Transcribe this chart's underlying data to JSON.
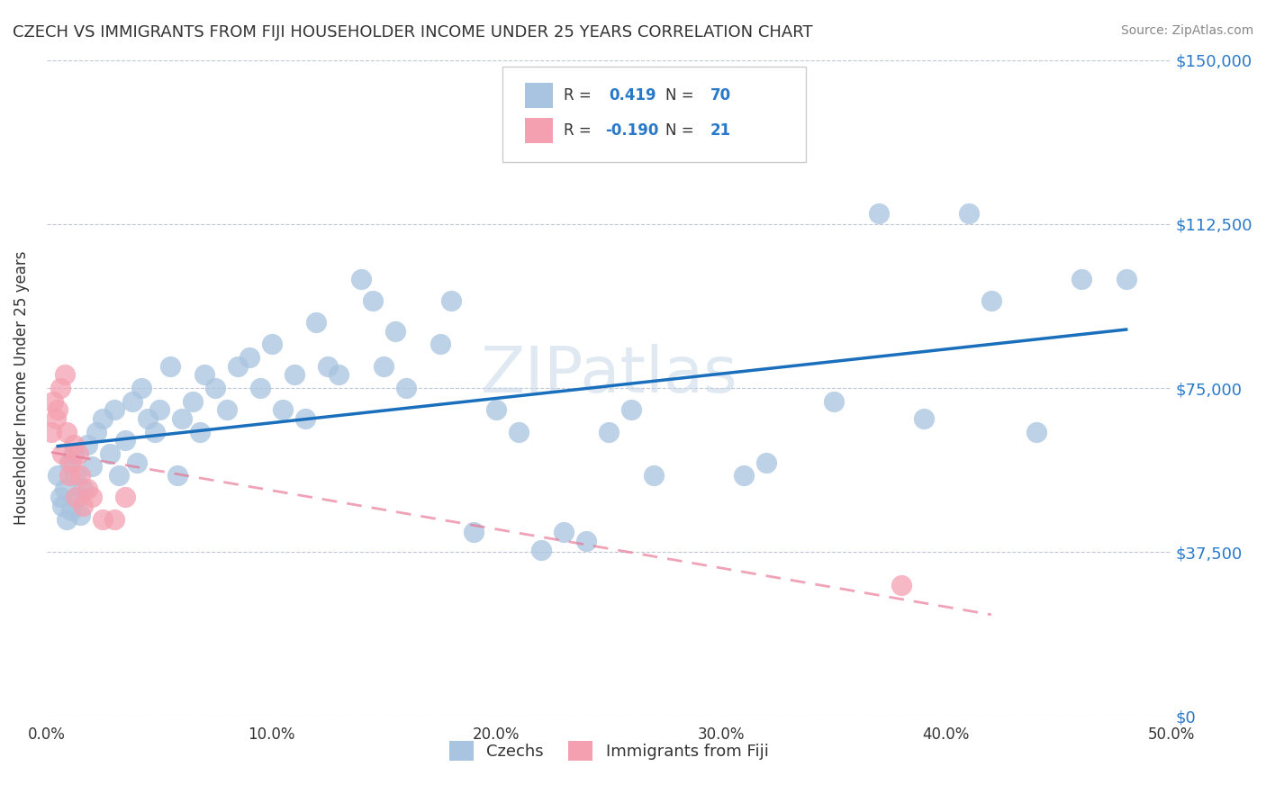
{
  "title": "CZECH VS IMMIGRANTS FROM FIJI HOUSEHOLDER INCOME UNDER 25 YEARS CORRELATION CHART",
  "source": "Source: ZipAtlas.com",
  "xlabel_ticks": [
    "0.0%",
    "10.0%",
    "20.0%",
    "30.0%",
    "40.0%",
    "50.0%"
  ],
  "xlabel_vals": [
    0.0,
    0.1,
    0.2,
    0.3,
    0.4,
    0.5
  ],
  "ylabel_ticks": [
    "$0",
    "$37,500",
    "$75,000",
    "$112,500",
    "$150,000"
  ],
  "ylabel_vals": [
    0,
    37500,
    75000,
    112500,
    150000
  ],
  "ylabel": "Householder Income Under 25 years",
  "xlim": [
    0.0,
    0.5
  ],
  "ylim": [
    0,
    150000
  ],
  "legend_r_czech": "0.419",
  "legend_n_czech": "70",
  "legend_r_fiji": "-0.190",
  "legend_n_fiji": "21",
  "blue_color": "#a8c4e0",
  "pink_color": "#f4a0b0",
  "line_blue": "#1a6fbd",
  "line_pink": "#e87090",
  "watermark": "ZIPatlas",
  "czech_x": [
    0.005,
    0.006,
    0.007,
    0.008,
    0.009,
    0.01,
    0.011,
    0.012,
    0.013,
    0.014,
    0.015,
    0.016,
    0.018,
    0.02,
    0.022,
    0.025,
    0.028,
    0.03,
    0.032,
    0.035,
    0.038,
    0.04,
    0.042,
    0.045,
    0.048,
    0.05,
    0.055,
    0.058,
    0.06,
    0.065,
    0.068,
    0.07,
    0.075,
    0.08,
    0.085,
    0.09,
    0.095,
    0.1,
    0.105,
    0.11,
    0.115,
    0.12,
    0.125,
    0.13,
    0.14,
    0.145,
    0.15,
    0.155,
    0.16,
    0.175,
    0.18,
    0.19,
    0.2,
    0.21,
    0.22,
    0.23,
    0.24,
    0.25,
    0.26,
    0.27,
    0.31,
    0.32,
    0.35,
    0.37,
    0.39,
    0.41,
    0.42,
    0.44,
    0.46,
    0.48
  ],
  "czech_y": [
    55000,
    50000,
    48000,
    52000,
    45000,
    58000,
    47000,
    60000,
    55000,
    50000,
    46000,
    52000,
    62000,
    57000,
    65000,
    68000,
    60000,
    70000,
    55000,
    63000,
    72000,
    58000,
    75000,
    68000,
    65000,
    70000,
    80000,
    55000,
    68000,
    72000,
    65000,
    78000,
    75000,
    70000,
    80000,
    82000,
    75000,
    85000,
    70000,
    78000,
    68000,
    90000,
    80000,
    78000,
    100000,
    95000,
    80000,
    88000,
    75000,
    85000,
    95000,
    42000,
    70000,
    65000,
    38000,
    42000,
    40000,
    65000,
    70000,
    55000,
    55000,
    58000,
    72000,
    115000,
    68000,
    115000,
    95000,
    65000,
    100000,
    100000
  ],
  "fiji_x": [
    0.002,
    0.003,
    0.004,
    0.005,
    0.006,
    0.007,
    0.008,
    0.009,
    0.01,
    0.011,
    0.012,
    0.013,
    0.014,
    0.015,
    0.016,
    0.018,
    0.02,
    0.025,
    0.03,
    0.035,
    0.38
  ],
  "fiji_y": [
    65000,
    72000,
    68000,
    70000,
    75000,
    60000,
    78000,
    65000,
    55000,
    58000,
    62000,
    50000,
    60000,
    55000,
    48000,
    52000,
    50000,
    45000,
    45000,
    50000,
    30000
  ]
}
